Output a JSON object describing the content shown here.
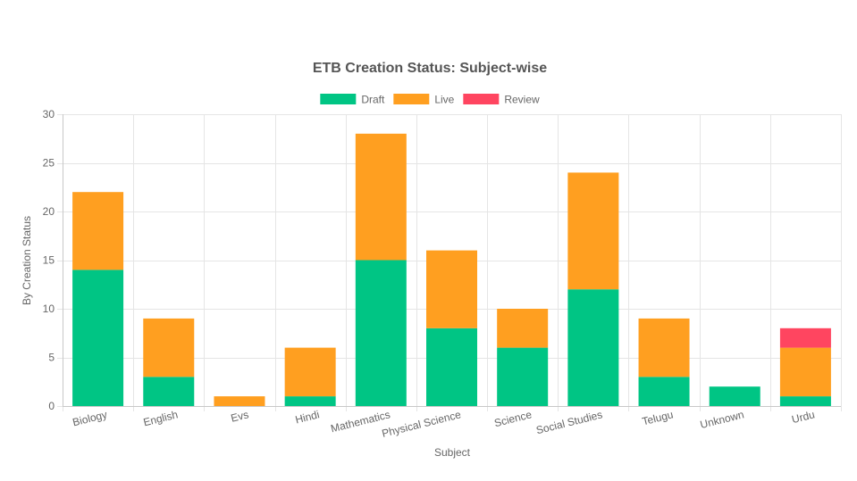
{
  "chart_data": {
    "type": "bar",
    "stacked": true,
    "title": "ETB Creation Status: Subject-wise",
    "xlabel": "Subject",
    "ylabel": "By Creation Status",
    "ylim": [
      0,
      30
    ],
    "yticks": [
      0,
      5,
      10,
      15,
      20,
      25,
      30
    ],
    "grid": true,
    "legend_position": "top",
    "categories": [
      "Biology",
      "English",
      "Evs",
      "Hindi",
      "Mathematics",
      "Physical Science",
      "Science",
      "Social Studies",
      "Telugu",
      "Unknown",
      "Urdu"
    ],
    "series": [
      {
        "name": "Draft",
        "color": "#00c584",
        "values": [
          14,
          3,
          0,
          1,
          15,
          8,
          6,
          12,
          3,
          2,
          1
        ]
      },
      {
        "name": "Live",
        "color": "#ff9f20",
        "values": [
          8,
          6,
          1,
          5,
          13,
          8,
          4,
          12,
          6,
          0,
          5
        ]
      },
      {
        "name": "Review",
        "color": "#ff4560",
        "values": [
          0,
          0,
          0,
          0,
          0,
          0,
          0,
          0,
          0,
          0,
          2
        ]
      }
    ]
  }
}
